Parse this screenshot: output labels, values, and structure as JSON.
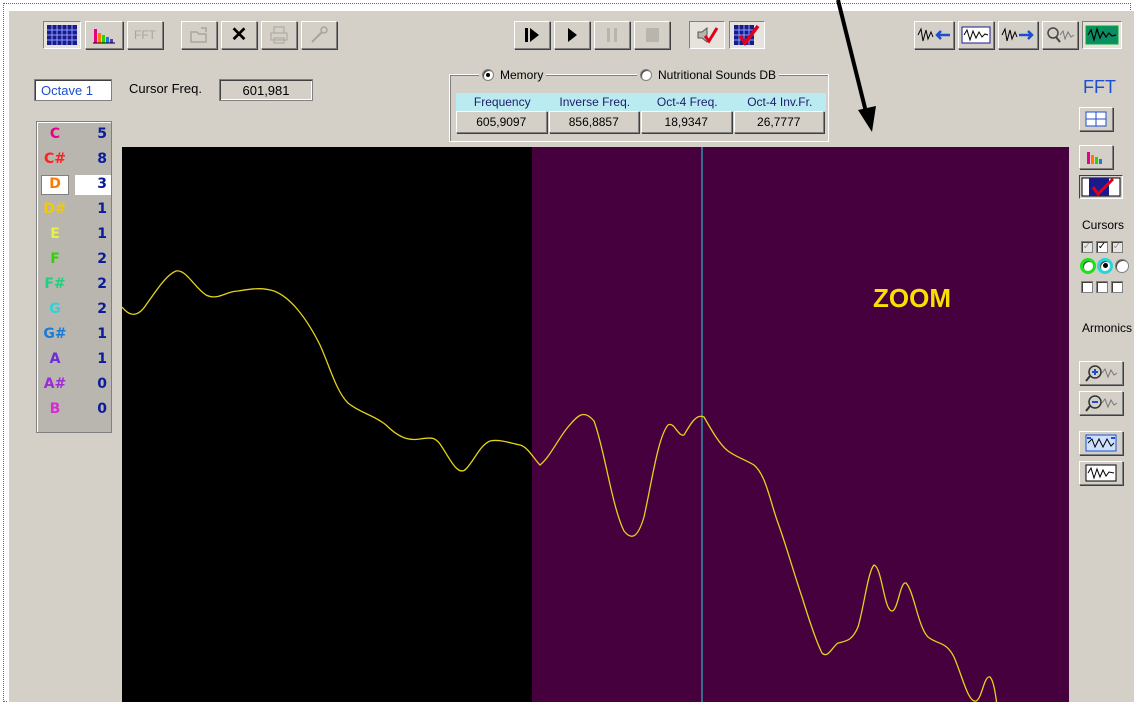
{
  "toolbar": {
    "fft_label": "FFT"
  },
  "left_panel": {
    "octave_label": "Octave 1",
    "cursor_freq_label": "Cursor Freq.",
    "cursor_freq_value": "601,981",
    "notes": [
      {
        "name": "C",
        "count": "5",
        "color": "#e80089"
      },
      {
        "name": "C#",
        "count": "8",
        "color": "#ff2020"
      },
      {
        "name": "D",
        "count": "3",
        "color": "#ff7a00"
      },
      {
        "name": "D#",
        "count": "1",
        "color": "#f3ca00"
      },
      {
        "name": "E",
        "count": "1",
        "color": "#e8f240"
      },
      {
        "name": "F",
        "count": "2",
        "color": "#2ed400"
      },
      {
        "name": "F#",
        "count": "2",
        "color": "#20d07c"
      },
      {
        "name": "G",
        "count": "2",
        "color": "#2ad4d8"
      },
      {
        "name": "G#",
        "count": "1",
        "color": "#1a7ad8"
      },
      {
        "name": "A",
        "count": "1",
        "color": "#6b2cd8"
      },
      {
        "name": "A#",
        "count": "0",
        "color": "#9b2cd8"
      },
      {
        "name": "B",
        "count": "0",
        "color": "#d82cd0"
      }
    ]
  },
  "memory": {
    "option_memory": "Memory",
    "option_db": "Nutritional Sounds DB",
    "headers": [
      "Frequency",
      "Inverse Freq.",
      "Oct-4 Freq.",
      "Oct-4 Inv.Fr."
    ],
    "values": [
      "605,9097",
      "856,8857",
      "18,9347",
      "26,7777"
    ]
  },
  "right_panel": {
    "fft_label": "FFT",
    "cursors_label": "Cursors",
    "armonics_label": "Armonics"
  },
  "annotation": {
    "zoom_label": "ZOOM"
  },
  "colors": {
    "plot_left_bg": "#000000",
    "plot_right_bg": "#45003d",
    "waveform": "#e3d21a",
    "cursor_line": "#2fb5c6",
    "zoom_text": "#f8e000"
  }
}
